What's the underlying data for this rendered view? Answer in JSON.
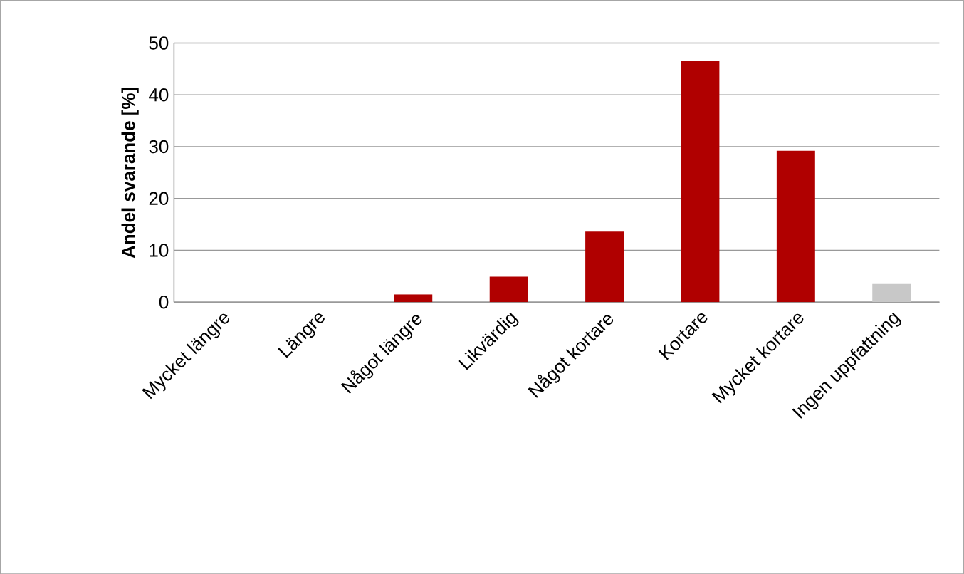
{
  "chart_data": {
    "type": "bar",
    "ylabel": "Andel svarande  [%]",
    "categories": [
      "Mycket längre",
      "Längre",
      "Något längre",
      "Likvärdig",
      "Något kortare",
      "Kortare",
      "Mycket kortare",
      "Ingen uppfattning"
    ],
    "values": [
      0,
      0,
      1.5,
      4.9,
      13.6,
      46.6,
      29.2,
      3.5
    ],
    "colors": [
      "#b00000",
      "#b00000",
      "#b00000",
      "#b00000",
      "#b00000",
      "#b00000",
      "#b00000",
      "#c8c8c8"
    ],
    "ylim": [
      0,
      50
    ],
    "yticks": [
      0,
      10,
      20,
      30,
      40,
      50
    ],
    "grid": "y"
  }
}
